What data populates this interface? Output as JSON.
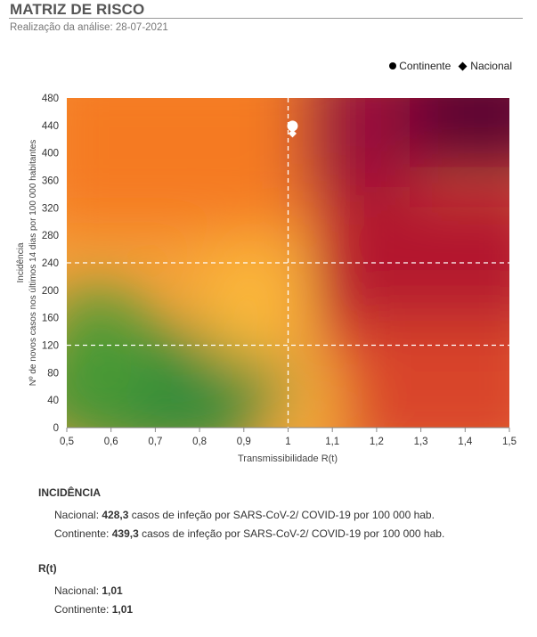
{
  "header": {
    "title": "MATRIZ DE RISCO",
    "subtitle": "Realização da análise: 28-07-2021"
  },
  "legend": {
    "continente": "Continente",
    "nacional": "Nacional"
  },
  "chart_data": {
    "type": "scatter",
    "xlabel": "Transmissibilidade R(t)",
    "ylabel_line1": "Incidência",
    "ylabel_line2": "Nº de novos casos nos últimos 14 dias por 100 000 habitantes",
    "xlim": [
      0.5,
      1.5
    ],
    "ylim": [
      0,
      480
    ],
    "x_ticks": [
      0.5,
      0.6,
      0.7,
      0.8,
      0.9,
      1.0,
      1.1,
      1.2,
      1.3,
      1.4,
      1.5
    ],
    "x_tick_labels": [
      "0,5",
      "0,6",
      "0,7",
      "0,8",
      "0,9",
      "1",
      "1,1",
      "1,2",
      "1,3",
      "1,4",
      "1,5"
    ],
    "y_ticks": [
      0,
      40,
      80,
      120,
      160,
      200,
      240,
      280,
      320,
      360,
      400,
      440,
      480
    ],
    "y_tick_labels": [
      "0",
      "40",
      "80",
      "120",
      "160",
      "200",
      "240",
      "280",
      "320",
      "360",
      "400",
      "440",
      "480"
    ],
    "reference_lines": {
      "x": [
        1.0
      ],
      "y": [
        120,
        240
      ]
    },
    "legend_position": "top-right",
    "series": [
      {
        "name": "Continente",
        "marker": "circle",
        "x": [
          1.01
        ],
        "y": [
          439.3
        ],
        "color": "#ffffff"
      },
      {
        "name": "Nacional",
        "marker": "diamond",
        "x": [
          1.01
        ],
        "y": [
          428.3
        ],
        "color": "#ffffff"
      }
    ],
    "colors": {
      "low": "#2e8b3a",
      "medium": "#f9b53a",
      "high": "#f57a20",
      "very_high": "#c4222a",
      "extreme": "#5c0032"
    }
  },
  "incidencia": {
    "heading": "INCIDÊNCIA",
    "nacional_prefix": "Nacional: ",
    "nacional_value": "428,3",
    "nacional_suffix": " casos de infeção por SARS-CoV-2/ COVID-19 por 100 000 hab.",
    "continente_prefix": "Continente: ",
    "continente_value": "439,3",
    "continente_suffix": " casos de infeção por SARS-CoV-2/ COVID-19 por 100 000 hab."
  },
  "rt": {
    "heading": "R(t)",
    "nacional_prefix": "Nacional: ",
    "nacional_value": "1,01",
    "continente_prefix": "Continente: ",
    "continente_value": "1,01"
  }
}
